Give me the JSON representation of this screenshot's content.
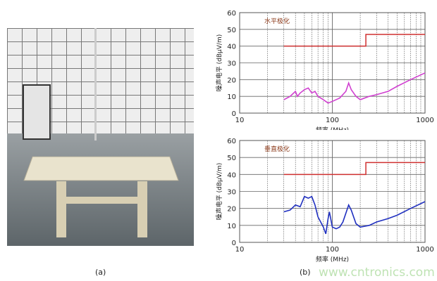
{
  "labels": {
    "a": "(a)",
    "b": "(b)",
    "watermark": "www.cntronics.com"
  },
  "chart_data": [
    {
      "type": "line",
      "annotation": "水平极化",
      "xlabel": "频率 (MHz)",
      "ylabel": "噪声电平 (dBμV/m)",
      "xscale": "log",
      "xlim": [
        10,
        1000
      ],
      "ylim": [
        0,
        60
      ],
      "xticks": [
        "10",
        "100",
        "1000"
      ],
      "yticks": [
        "0",
        "10",
        "20",
        "30",
        "40",
        "50",
        "60"
      ],
      "grid": true,
      "series": [
        {
          "color": "#d040d0",
          "x": [
            30,
            35,
            40,
            42,
            45,
            50,
            55,
            60,
            65,
            70,
            80,
            90,
            100,
            120,
            140,
            150,
            160,
            180,
            200,
            250,
            300,
            400,
            500,
            700,
            1000
          ],
          "y": [
            8,
            10,
            13,
            10,
            12,
            14,
            15,
            12,
            13,
            10,
            8,
            6,
            7,
            9,
            13,
            18,
            14,
            10,
            8,
            10,
            11,
            13,
            16,
            20,
            24
          ]
        },
        {
          "color": "#d03030",
          "x": [
            30,
            230,
            230,
            1000
          ],
          "y": [
            40,
            40,
            47,
            47
          ]
        }
      ]
    },
    {
      "type": "line",
      "annotation": "垂直极化",
      "xlabel": "频率 (MHz)",
      "ylabel": "噪声电平 (dBμV/m)",
      "xscale": "log",
      "xlim": [
        10,
        1000
      ],
      "ylim": [
        0,
        60
      ],
      "xticks": [
        "10",
        "100",
        "1000"
      ],
      "yticks": [
        "0",
        "10",
        "20",
        "30",
        "40",
        "50",
        "60"
      ],
      "grid": true,
      "series": [
        {
          "color": "#2030c0",
          "x": [
            30,
            35,
            40,
            45,
            50,
            55,
            60,
            65,
            70,
            80,
            85,
            90,
            93,
            100,
            110,
            120,
            130,
            150,
            160,
            180,
            200,
            250,
            300,
            400,
            500,
            700,
            1000
          ],
          "y": [
            18,
            19,
            22,
            21,
            27,
            26,
            27,
            22,
            15,
            9,
            5,
            14,
            18,
            9,
            8,
            9,
            12,
            22,
            19,
            11,
            9,
            10,
            12,
            14,
            16,
            20,
            24
          ]
        },
        {
          "color": "#d03030",
          "x": [
            30,
            230,
            230,
            1000
          ],
          "y": [
            40,
            40,
            47,
            47
          ]
        }
      ]
    }
  ]
}
